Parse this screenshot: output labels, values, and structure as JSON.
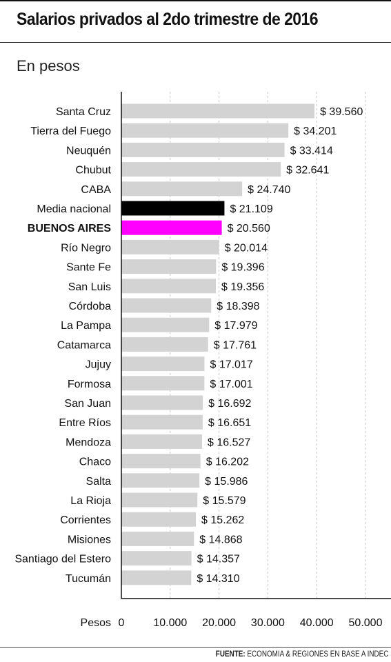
{
  "header": {
    "title": "Salarios privados al 2do trimestre de 2016",
    "subtitle": "En pesos"
  },
  "footer": {
    "source_label": "FUENTE:",
    "source_text": "ECONOMIA & REGIONES EN BASE A INDEC"
  },
  "colors": {
    "bar_default": "#d3d3d3",
    "bar_national": "#000000",
    "bar_highlight": "#ff00ff",
    "grid": "#c4c4c4",
    "axis": "#111111"
  },
  "chart_data": {
    "type": "bar",
    "orientation": "horizontal",
    "title": "Salarios privados al 2do trimestre de 2016",
    "subtitle": "En pesos",
    "xlabel": "Pesos",
    "xlim": [
      0,
      50000
    ],
    "x_ticks": [
      0,
      10000,
      20000,
      30000,
      40000,
      50000
    ],
    "x_tick_labels": [
      "0",
      "10.000",
      "20.000",
      "30.000",
      "40.000",
      "50.000"
    ],
    "grid": "vertical dashed",
    "categories": [
      "Santa Cruz",
      "Tierra del Fuego",
      "Neuquén",
      "Chubut",
      "CABA",
      "Media nacional",
      "BUENOS AIRES",
      "Río Negro",
      "Sante Fe",
      "San Luis",
      "Córdoba",
      "La Pampa",
      "Catamarca",
      "Jujuy",
      "Formosa",
      "San Juan",
      "Entre Ríos",
      "Mendoza",
      "Chaco",
      "Salta",
      "La Rioja",
      "Corrientes",
      "Misiones",
      "Santiago del Estero",
      "Tucumán"
    ],
    "values": [
      39560,
      34201,
      33414,
      32641,
      24740,
      21109,
      20560,
      20014,
      19396,
      19356,
      18398,
      17979,
      17761,
      17017,
      17001,
      16692,
      16651,
      16527,
      16202,
      15986,
      15579,
      15262,
      14868,
      14357,
      14310
    ],
    "value_labels": [
      "$ 39.560",
      "$ 34.201",
      "$ 33.414",
      "$ 32.641",
      "$ 24.740",
      "$ 21.109",
      "$ 20.560",
      "$ 20.014",
      "$ 19.396",
      "$ 19.356",
      "$ 18.398",
      "$ 17.979",
      "$ 17.761",
      "$ 17.017",
      "$ 17.001",
      "$ 16.692",
      "$ 16.651",
      "$ 16.527",
      "$ 16.202",
      "$ 15.986",
      "$ 15.579",
      "$ 15.262",
      "$ 14.868",
      "$ 14.357",
      "$ 14.310"
    ],
    "highlight": {
      "Media nacional": "#000000",
      "BUENOS AIRES": "#ff00ff"
    },
    "bold_categories": [
      "BUENOS AIRES"
    ]
  }
}
